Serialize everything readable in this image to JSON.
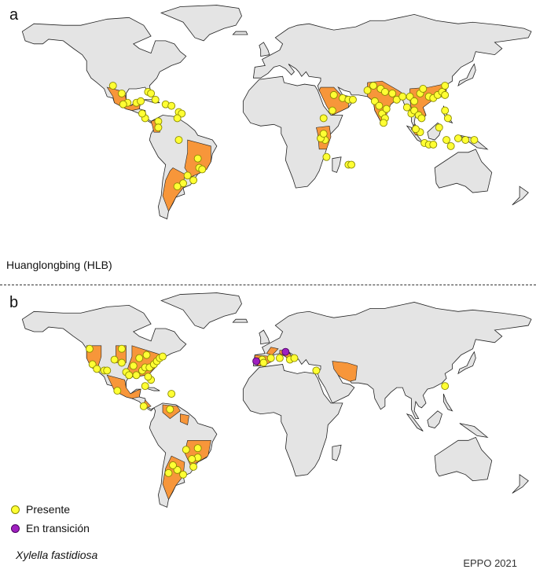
{
  "panels": [
    {
      "letter": "a",
      "title": "Huanglongbing (HLB)",
      "present_points_lonlat": [
        [
          -106,
          31
        ],
        [
          -100,
          26
        ],
        [
          -96,
          20
        ],
        [
          -99,
          19
        ],
        [
          -90,
          20
        ],
        [
          -87,
          21
        ],
        [
          -82,
          27
        ],
        [
          -80,
          26
        ],
        [
          -77,
          22
        ],
        [
          -70,
          19
        ],
        [
          -66,
          18
        ],
        [
          -61,
          14
        ],
        [
          -59,
          13
        ],
        [
          -62,
          10
        ],
        [
          -84,
          10
        ],
        [
          -86,
          13
        ],
        [
          -75,
          8
        ],
        [
          -75,
          4
        ],
        [
          -61,
          -4
        ],
        [
          -48,
          -16
        ],
        [
          -47,
          -22
        ],
        [
          -45,
          -23
        ],
        [
          -55,
          -27
        ],
        [
          -58,
          -32
        ],
        [
          -51,
          -30
        ],
        [
          -62,
          -34
        ],
        [
          45,
          25
        ],
        [
          51,
          23
        ],
        [
          55,
          22
        ],
        [
          58,
          22
        ],
        [
          44,
          15
        ],
        [
          38,
          10
        ],
        [
          39,
          -4
        ],
        [
          36,
          -3
        ],
        [
          38,
          0
        ],
        [
          40,
          -15
        ],
        [
          55,
          -20
        ],
        [
          57,
          -20
        ],
        [
          68,
          28
        ],
        [
          72,
          31
        ],
        [
          77,
          29
        ],
        [
          80,
          27
        ],
        [
          85,
          26
        ],
        [
          88,
          22
        ],
        [
          92,
          24
        ],
        [
          97,
          24
        ],
        [
          100,
          21
        ],
        [
          104,
          26
        ],
        [
          106,
          29
        ],
        [
          110,
          24
        ],
        [
          113,
          23
        ],
        [
          116,
          25
        ],
        [
          119,
          27
        ],
        [
          121,
          25
        ],
        [
          121,
          31
        ],
        [
          73,
          21
        ],
        [
          76,
          18
        ],
        [
          78,
          13
        ],
        [
          80,
          10
        ],
        [
          79,
          7
        ],
        [
          81,
          16
        ],
        [
          95,
          17
        ],
        [
          98,
          13
        ],
        [
          100,
          15
        ],
        [
          103,
          12
        ],
        [
          105,
          10
        ],
        [
          104,
          1
        ],
        [
          101,
          3
        ],
        [
          107,
          -6
        ],
        [
          110,
          -7
        ],
        [
          113,
          -7
        ],
        [
          117,
          4
        ],
        [
          123,
          10
        ],
        [
          121,
          15
        ],
        [
          122,
          -4
        ],
        [
          125,
          -8
        ],
        [
          130,
          -3
        ],
        [
          135,
          -4
        ],
        [
          141,
          -4
        ]
      ],
      "transition_points_lonlat": []
    },
    {
      "letter": "b",
      "title": "",
      "present_points_lonlat": [
        [
          -122,
          47
        ],
        [
          -120,
          37
        ],
        [
          -117,
          34
        ],
        [
          -112,
          33
        ],
        [
          -105,
          40
        ],
        [
          -100,
          38
        ],
        [
          -97,
          32
        ],
        [
          -95,
          30
        ],
        [
          -90,
          30
        ],
        [
          -86,
          33
        ],
        [
          -84,
          35
        ],
        [
          -81,
          35
        ],
        [
          -78,
          37
        ],
        [
          -76,
          39
        ],
        [
          -74,
          41
        ],
        [
          -72,
          42
        ],
        [
          -80,
          27
        ],
        [
          -82,
          29
        ],
        [
          -92,
          36
        ],
        [
          -88,
          41
        ],
        [
          -83,
          43
        ],
        [
          -100,
          47
        ],
        [
          -110,
          33
        ],
        [
          -103,
          20
        ],
        [
          -85,
          10
        ],
        [
          -66,
          18
        ],
        [
          -84,
          23
        ],
        [
          -67,
          8
        ],
        [
          -56,
          -18
        ],
        [
          -48,
          -17
        ],
        [
          -48,
          -23
        ],
        [
          -52,
          -24
        ],
        [
          -51,
          -29
        ],
        [
          -58,
          -34
        ],
        [
          -62,
          -31
        ],
        [
          -65,
          -28
        ],
        [
          -68,
          -33
        ],
        [
          -4,
          40
        ],
        [
          -3,
          38
        ],
        [
          2,
          41
        ],
        [
          8,
          41
        ],
        [
          15,
          40
        ],
        [
          18,
          41
        ],
        [
          33,
          33
        ],
        [
          121,
          23
        ]
      ],
      "transition_points_lonlat": [
        [
          -8,
          39
        ],
        [
          12,
          45
        ]
      ]
    }
  ],
  "legend": {
    "present_label": "Presente",
    "transition_label": "En transición"
  },
  "species_name": "Xylella fastidiosa",
  "source_label": "EPPO 2021",
  "colors": {
    "land": "#e4e4e4",
    "land_border": "#222222",
    "infected_region": "#f7963a",
    "present_marker": "#ffff33",
    "present_marker_border": "#8a8a00",
    "transition_marker": "#a020c0",
    "transition_marker_border": "#4a0060"
  }
}
